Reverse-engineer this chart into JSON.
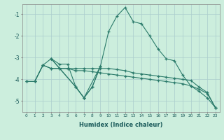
{
  "xlabel": "Humidex (Indice chaleur)",
  "bg_color": "#cceedd",
  "grid_color": "#aacccc",
  "line_color": "#2a7a6a",
  "xlim": [
    -0.5,
    23.5
  ],
  "ylim": [
    -5.5,
    -0.55
  ],
  "yticks": [
    -5,
    -4,
    -3,
    -2,
    -1
  ],
  "xticks": [
    0,
    1,
    2,
    3,
    4,
    5,
    6,
    7,
    8,
    9,
    10,
    11,
    12,
    13,
    14,
    15,
    16,
    17,
    18,
    19,
    20,
    21,
    22,
    23
  ],
  "line1_x": [
    0,
    1,
    2,
    3,
    4,
    5,
    6,
    7,
    8,
    9,
    10,
    11,
    12,
    13,
    14,
    15,
    16,
    17,
    18,
    19,
    20,
    21,
    22,
    23
  ],
  "line1_y": [
    -4.1,
    -4.1,
    -3.35,
    -3.05,
    -3.3,
    -3.3,
    -4.35,
    -4.85,
    -4.35,
    -3.4,
    -1.8,
    -1.1,
    -0.7,
    -1.35,
    -1.45,
    -2.0,
    -2.6,
    -3.05,
    -3.15,
    -3.8,
    -4.3,
    -4.55,
    -4.85,
    -5.3
  ],
  "line2_x": [
    0,
    1,
    2,
    3,
    4,
    5,
    6,
    7,
    8,
    9,
    10,
    11,
    12,
    13,
    14,
    15,
    16,
    17,
    18,
    19,
    20,
    21,
    22,
    23
  ],
  "line2_y": [
    -4.1,
    -4.1,
    -3.35,
    -3.5,
    -3.5,
    -3.5,
    -3.5,
    -3.5,
    -3.5,
    -3.5,
    -3.5,
    -3.55,
    -3.6,
    -3.7,
    -3.75,
    -3.8,
    -3.85,
    -3.9,
    -3.95,
    -4.0,
    -4.05,
    -4.35,
    -4.6,
    -5.3
  ],
  "line3_x": [
    0,
    1,
    2,
    3,
    4,
    5,
    6,
    7,
    8,
    9,
    10,
    11,
    12,
    13,
    14,
    15,
    16,
    17,
    18,
    19,
    20,
    21,
    22,
    23
  ],
  "line3_y": [
    -4.1,
    -4.1,
    -3.35,
    -3.5,
    -3.5,
    -3.5,
    -3.6,
    -3.6,
    -3.65,
    -3.7,
    -3.75,
    -3.8,
    -3.85,
    -3.9,
    -3.95,
    -4.0,
    -4.05,
    -4.1,
    -4.15,
    -4.2,
    -4.3,
    -4.45,
    -4.65,
    -5.3
  ],
  "line4_x": [
    3,
    6,
    7,
    8,
    9
  ],
  "line4_y": [
    -3.05,
    -4.35,
    -4.85,
    -4.35,
    -3.4
  ],
  "line5_x": [
    3,
    6,
    7,
    9
  ],
  "line5_y": [
    -3.05,
    -4.35,
    -4.85,
    -3.4
  ]
}
